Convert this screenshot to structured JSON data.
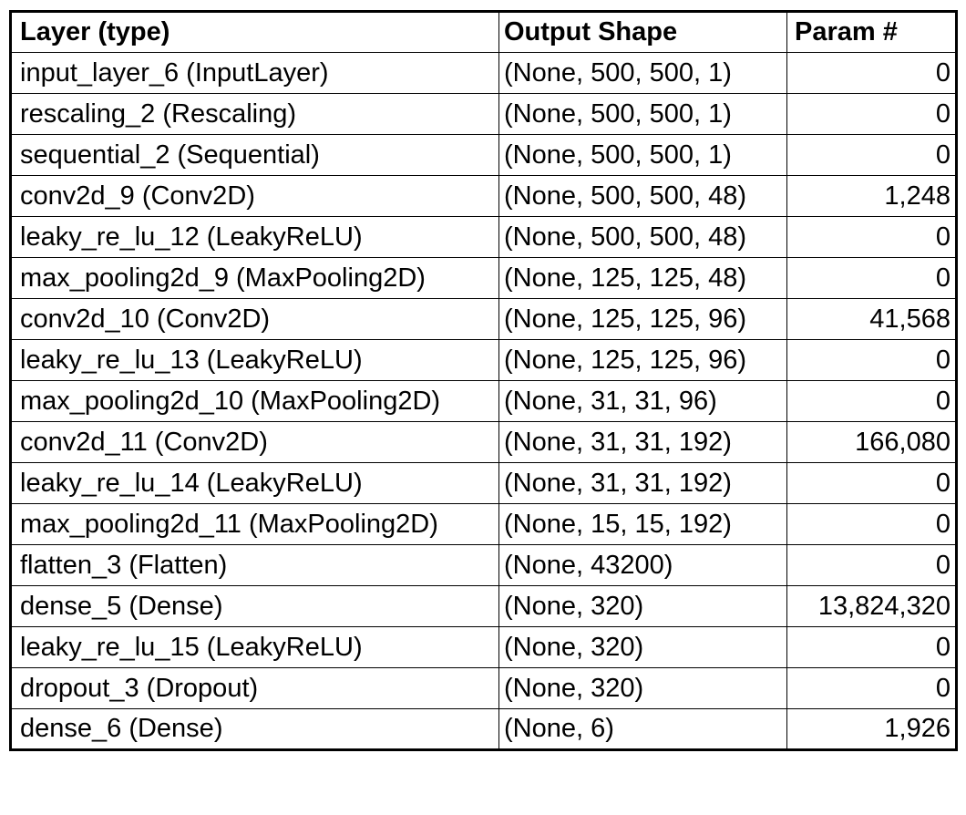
{
  "table": {
    "headers": [
      "Layer (type)",
      "Output Shape",
      "Param #"
    ],
    "rows": [
      {
        "layer": "input_layer_6 (InputLayer)",
        "shape": "(None, 500, 500, 1)",
        "params": "0"
      },
      {
        "layer": "rescaling_2 (Rescaling)",
        "shape": "(None, 500, 500, 1)",
        "params": "0"
      },
      {
        "layer": "sequential_2 (Sequential)",
        "shape": "(None, 500, 500, 1)",
        "params": "0"
      },
      {
        "layer": "conv2d_9 (Conv2D)",
        "shape": "(None, 500, 500, 48)",
        "params": "1,248"
      },
      {
        "layer": "leaky_re_lu_12 (LeakyReLU)",
        "shape": "(None, 500, 500, 48)",
        "params": "0"
      },
      {
        "layer": "max_pooling2d_9 (MaxPooling2D)",
        "shape": "(None, 125, 125, 48)",
        "params": "0"
      },
      {
        "layer": "conv2d_10 (Conv2D)",
        "shape": "(None, 125, 125, 96)",
        "params": "41,568"
      },
      {
        "layer": "leaky_re_lu_13 (LeakyReLU)",
        "shape": "(None, 125, 125, 96)",
        "params": "0"
      },
      {
        "layer": "max_pooling2d_10 (MaxPooling2D)",
        "shape": "(None, 31, 31, 96)",
        "params": "0"
      },
      {
        "layer": "conv2d_11 (Conv2D)",
        "shape": "(None, 31, 31, 192)",
        "params": "166,080"
      },
      {
        "layer": "leaky_re_lu_14 (LeakyReLU)",
        "shape": "(None, 31, 31, 192)",
        "params": "0"
      },
      {
        "layer": "max_pooling2d_11 (MaxPooling2D)",
        "shape": "(None, 15, 15, 192)",
        "params": "0"
      },
      {
        "layer": "flatten_3 (Flatten)",
        "shape": "(None, 43200)",
        "params": "0"
      },
      {
        "layer": "dense_5 (Dense)",
        "shape": "(None, 320)",
        "params": "13,824,320"
      },
      {
        "layer": "leaky_re_lu_15 (LeakyReLU)",
        "shape": "(None, 320)",
        "params": "0"
      },
      {
        "layer": "dropout_3 (Dropout)",
        "shape": "(None, 320)",
        "params": "0"
      },
      {
        "layer": "dense_6 (Dense)",
        "shape": "(None, 6)",
        "params": "1,926"
      }
    ]
  }
}
